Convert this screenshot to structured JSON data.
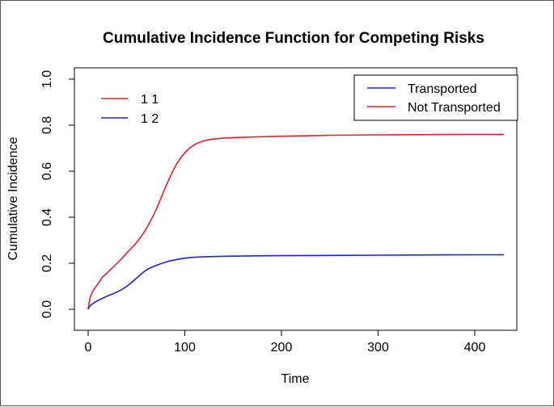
{
  "chart_data": {
    "type": "line",
    "title": "Cumulative Incidence Function for Competing Risks",
    "xlabel": "Time",
    "ylabel": "Cumulative Incidence",
    "xlim": [
      0,
      430
    ],
    "ylim": [
      0,
      1.0
    ],
    "x_ticks": [
      "0",
      "100",
      "200",
      "300",
      "400"
    ],
    "y_ticks": [
      "0.0",
      "0.2",
      "0.4",
      "0.6",
      "0.8",
      "1.0"
    ],
    "grid": false,
    "series": [
      {
        "name": "1 1",
        "color": "#e8202a",
        "x": [
          0,
          2,
          5,
          10,
          15,
          20,
          30,
          40,
          50,
          60,
          70,
          80,
          90,
          100,
          110,
          120,
          130,
          150,
          200,
          250,
          300,
          350,
          400,
          430
        ],
        "y": [
          0.0,
          0.05,
          0.08,
          0.11,
          0.14,
          0.16,
          0.2,
          0.245,
          0.29,
          0.35,
          0.43,
          0.53,
          0.62,
          0.68,
          0.715,
          0.732,
          0.74,
          0.746,
          0.752,
          0.756,
          0.758,
          0.759,
          0.76,
          0.76
        ]
      },
      {
        "name": "1 2",
        "color": "#2020d8",
        "x": [
          0,
          2,
          5,
          10,
          15,
          20,
          30,
          40,
          50,
          60,
          70,
          80,
          90,
          100,
          110,
          120,
          150,
          200,
          250,
          300,
          350,
          400,
          430
        ],
        "y": [
          0.0,
          0.015,
          0.025,
          0.038,
          0.048,
          0.058,
          0.075,
          0.1,
          0.135,
          0.17,
          0.19,
          0.205,
          0.215,
          0.222,
          0.226,
          0.228,
          0.231,
          0.233,
          0.234,
          0.235,
          0.236,
          0.237,
          0.237
        ]
      }
    ],
    "legend_series": {
      "placement": "top-left",
      "entries": [
        {
          "label": "1 1",
          "color": "#e8202a"
        },
        {
          "label": "1 2",
          "color": "#2020d8"
        }
      ]
    },
    "legend_outcome": {
      "placement": "top-right",
      "boxed": true,
      "entries": [
        {
          "label": "Transported",
          "color": "#2020d8"
        },
        {
          "label": "Not Transported",
          "color": "#e8202a"
        }
      ]
    }
  }
}
